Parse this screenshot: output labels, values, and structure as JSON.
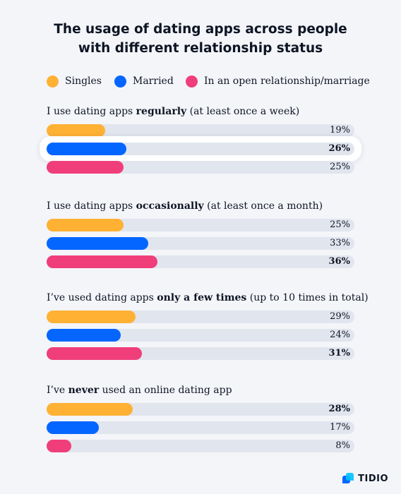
{
  "chart_data": {
    "type": "bar",
    "title": "The usage of dating apps across people with different relationship status",
    "title_lines": [
      "The usage of dating apps across people",
      "with different relationship status"
    ],
    "orientation": "horizontal",
    "unit": "%",
    "xlim": [
      0,
      100
    ],
    "grid": false,
    "legend_position": "top",
    "series": [
      {
        "name": "Singles",
        "color": "#ffb134"
      },
      {
        "name": "Married",
        "color": "#0566ff"
      },
      {
        "name": "In an open relationship/marriage",
        "color": "#ef3e7a"
      }
    ],
    "groups": [
      {
        "label_parts": [
          {
            "text": "I use dating apps ",
            "bold": false
          },
          {
            "text": "regularly",
            "bold": true
          },
          {
            "text": " (at least once a week)",
            "bold": false
          }
        ],
        "values": [
          19,
          26,
          25
        ],
        "value_labels": [
          "19%",
          "26%",
          "25%"
        ],
        "highlight_series": 1
      },
      {
        "label_parts": [
          {
            "text": "I use dating apps ",
            "bold": false
          },
          {
            "text": "occasionally",
            "bold": true
          },
          {
            "text": " (at least once a month)",
            "bold": false
          }
        ],
        "values": [
          25,
          33,
          36
        ],
        "value_labels": [
          "25%",
          "33%",
          "36%"
        ],
        "highlight_series": null
      },
      {
        "label_parts": [
          {
            "text": "I’ve used dating apps ",
            "bold": false
          },
          {
            "text": "only a few times",
            "bold": true
          },
          {
            "text": " (up to 10 times in total)",
            "bold": false
          }
        ],
        "values": [
          29,
          24,
          31
        ],
        "value_labels": [
          "29%",
          "24%",
          "31%"
        ],
        "highlight_series": null
      },
      {
        "label_parts": [
          {
            "text": "I’ve ",
            "bold": false
          },
          {
            "text": "never",
            "bold": true
          },
          {
            "text": " used an online dating app",
            "bold": false
          }
        ],
        "values": [
          28,
          17,
          8
        ],
        "value_labels": [
          "28%",
          "17%",
          "8%"
        ],
        "highlight_series": null
      }
    ]
  },
  "branding": {
    "logo_text": "TIDIO"
  }
}
